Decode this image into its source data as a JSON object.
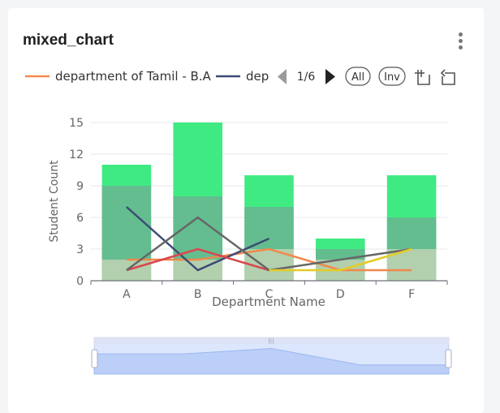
{
  "card": {
    "title": "mixed_chart"
  },
  "legend": {
    "items": [
      {
        "name": "department of Tamil - B.A",
        "color": "#f0894b"
      },
      {
        "name": "dep",
        "color": "#3d4a75"
      }
    ],
    "page": "1/6",
    "all_label": "All",
    "inv_label": "Inv"
  },
  "chart_data": {
    "type": "bar",
    "xlabel": "Department Name",
    "ylabel": "Student Count",
    "categories": [
      "A",
      "B",
      "C",
      "D",
      "F"
    ],
    "ylim": [
      0,
      15
    ],
    "yticks": [
      0,
      3,
      6,
      9,
      12,
      15
    ],
    "grid": true,
    "bars": {
      "color": "#40ea83",
      "values": [
        11,
        15,
        10,
        4,
        10
      ],
      "stacked_underneath": [
        {
          "color": "#d8c7bc",
          "values": [
            2,
            2,
            3,
            2,
            3
          ]
        },
        {
          "color": "#6fae93",
          "values": [
            7,
            6,
            4,
            1,
            3
          ]
        }
      ]
    },
    "series": [
      {
        "name": "department of Tamil - B.A",
        "color": "#f0894b",
        "values": [
          2,
          2,
          3,
          1,
          1
        ]
      },
      {
        "name": "dep",
        "color": "#3d4a75",
        "values": [
          7,
          1,
          4,
          null,
          null
        ]
      },
      {
        "color": "#d9474f",
        "values": [
          1,
          3,
          1,
          null,
          null
        ]
      },
      {
        "color": "#666666",
        "values": [
          1,
          6,
          1,
          2,
          3
        ]
      },
      {
        "color": "#e3cc25",
        "values": [
          null,
          null,
          1,
          1,
          3
        ]
      }
    ],
    "datazoom": {
      "overview": [
        11,
        11,
        14,
        5,
        5
      ]
    }
  }
}
